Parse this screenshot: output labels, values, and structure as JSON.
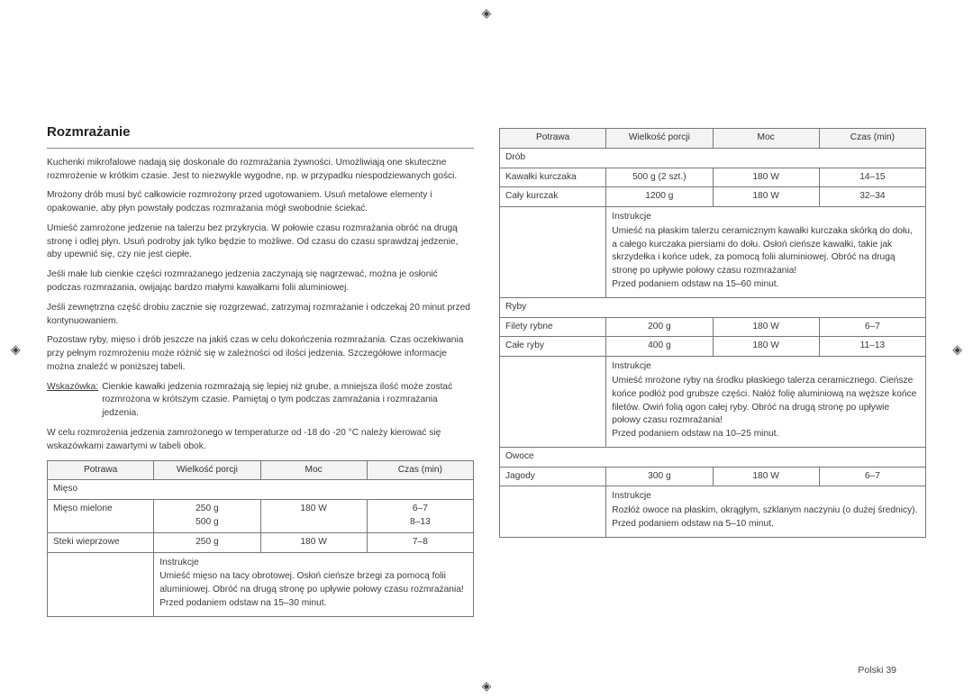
{
  "cropmark_glyph": "◈",
  "heading": "Rozmrażanie",
  "left_paragraphs": [
    "Kuchenki mikrofalowe nadają się doskonale do rozmrażania żywności. Umożliwiają one skuteczne rozmrożenie w krótkim czasie. Jest to niezwykle wygodne, np. w przypadku niespodziewanych gości.",
    "Mrożony drób musi być całkowicie rozmrożony przed ugotowaniem. Usuń metalowe elementy i opakowanie, aby płyn powstały podczas rozmrażania mógł swobodnie ściekać.",
    "Umieść zamrożone jedzenie na talerzu bez przykrycia. W połowie czasu rozmrażania obróć na drugą stronę i odlej płyn. Usuń podroby jak tylko będzie to możliwe. Od czasu do czasu sprawdzaj jedzenie, aby upewnić się, czy nie jest ciepłe.",
    "Jeśli małe lub cienkie części rozmrażanego jedzenia zaczynają się nagrzewać, można je osłonić podczas rozmrażania, owijając bardzo małymi kawałkami folii aluminiowej.",
    "Jeśli zewnętrzna część drobiu zacznie się rozgrzewać, zatrzymaj rozmrażanie i odczekaj 20 minut przed kontynuowaniem.",
    "Pozostaw ryby, mięso i drób jeszcze na jakiś czas w celu dokończenia rozmrażania. Czas oczekiwania przy pełnym rozmrożeniu może różnić się w zależności od ilości jedzenia. Szczegółowe informacje można znaleźć w poniższej tabeli."
  ],
  "tip_label": "Wskazówka:",
  "tip_text": "Cienkie kawałki jedzenia rozmrażają się lepiej niż grube, a mniejsza ilość może zostać rozmrożona w krótszym czasie. Pamiętaj o tym podczas zamrażania i rozmrażania jedzenia.",
  "lead_in": "W celu rozmrożenia jedzenia zamrożonego w temperaturze od -18 do -20 °C należy kierować się wskazówkami zawartymi w tabeli obok.",
  "headers": {
    "c1": "Potrawa",
    "c2": "Wielkość porcji",
    "c3": "Moc",
    "c4": "Czas (min)"
  },
  "instr_label": "Instrukcje",
  "left_table": {
    "cat": "Mięso",
    "rows": [
      {
        "c1": "Mięso mielone",
        "c2": "250 g\n500 g",
        "c3": "180 W",
        "c4": "6–7\n8–13"
      },
      {
        "c1": "Steki wieprzowe",
        "c2": "250 g",
        "c3": "180 W",
        "c4": "7–8"
      }
    ],
    "instr": "Umieść mięso na tacy obrotowej. Osłoń cieńsze brzegi za pomocą folii aluminiowej. Obróć na drugą stronę po upływie połowy czasu rozmrażania!\nPrzed podaniem odstaw na 15–30 minut."
  },
  "right_groups": [
    {
      "cat": "Drób",
      "rows": [
        {
          "c1": "Kawałki kurczaka",
          "c2": "500 g (2 szt.)",
          "c3": "180 W",
          "c4": "14–15"
        },
        {
          "c1": "Cały kurczak",
          "c2": "1200 g",
          "c3": "180 W",
          "c4": "32–34"
        }
      ],
      "instr": "Umieść na płaskim talerzu ceramicznym kawałki kurczaka skórką do dołu, a całego kurczaka piersiami do dołu. Osłoń cieńsze kawałki, takie jak skrzydełka i końce udek, za pomocą folii aluminiowej. Obróć na drugą stronę po upływie połowy czasu rozmrażania!\nPrzed podaniem odstaw na 15–60 minut."
    },
    {
      "cat": "Ryby",
      "rows": [
        {
          "c1": "Filety rybne",
          "c2": "200 g",
          "c3": "180 W",
          "c4": "6–7"
        },
        {
          "c1": "Całe ryby",
          "c2": "400 g",
          "c3": "180 W",
          "c4": "11–13"
        }
      ],
      "instr": "Umieść mrożone ryby na środku płaskiego talerza ceramicznego. Cieńsze końce podłóż pod grubsze części. Nałóż folię aluminiową na węższe końce filetów. Owiń folią ogon całej ryby. Obróć na drugą stronę po upływie połowy czasu rozmrażania!\nPrzed podaniem odstaw na 10–25 minut."
    },
    {
      "cat": "Owoce",
      "rows": [
        {
          "c1": "Jagody",
          "c2": "300 g",
          "c3": "180 W",
          "c4": "6–7"
        }
      ],
      "instr": "Rozłóż owoce na płaskim, okrągłym, szklanym naczyniu (o dużej średnicy). Przed podaniem odstaw na 5–10 minut."
    }
  ],
  "page_num": "Polski  39"
}
